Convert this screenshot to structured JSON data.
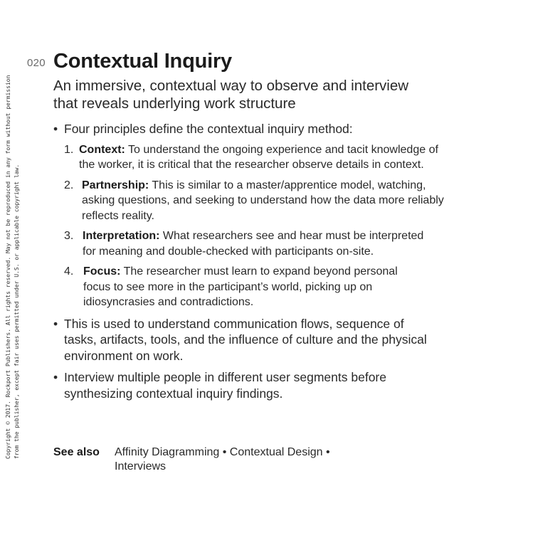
{
  "sidebar": {
    "copyright_line1": "Copyright © 2017. Rockport Publishers. All rights reserved. May not be reproduced in any form without permission",
    "copyright_line2": "from the publisher, except fair uses permitted under U.S. or applicable copyright law."
  },
  "page": {
    "number": "020",
    "title": "Contextual Inquiry",
    "subtitle": "An immersive, contextual way to observe and interview that reveals underlying work structure"
  },
  "content": {
    "bullet_symbol": "•",
    "intro": "Four principles define the contextual inquiry method:",
    "principles": [
      {
        "number": "1.",
        "term": "Context:",
        "text": "To understand the ongoing experience and tacit knowledge of the worker, it is critical that the researcher observe details in context."
      },
      {
        "number": "2.",
        "term": "Partnership:",
        "text": "This is similar to a master/apprentice model, watching, asking questions, and seeking to understand how the data more reliably reflects reality."
      },
      {
        "number": "3.",
        "term": "Interpretation:",
        "text": "What researchers see and hear must be interpreted for meaning and double-checked with participants on-site."
      },
      {
        "number": "4.",
        "term": "Focus:",
        "text": "The researcher must learn to expand beyond personal focus to see more in the participant’s world, picking up on idiosyncrasies and contradictions."
      }
    ],
    "bullets": [
      "This is used to understand communication flows, sequence of tasks, artifacts, tools, and the influence of culture and the physical environment on work.",
      "Interview multiple people in different user segments before synthesizing contextual inquiry findings."
    ]
  },
  "see_also": {
    "label": "See also",
    "references": "Affinity Diagramming • Contextual Design • Interviews"
  }
}
